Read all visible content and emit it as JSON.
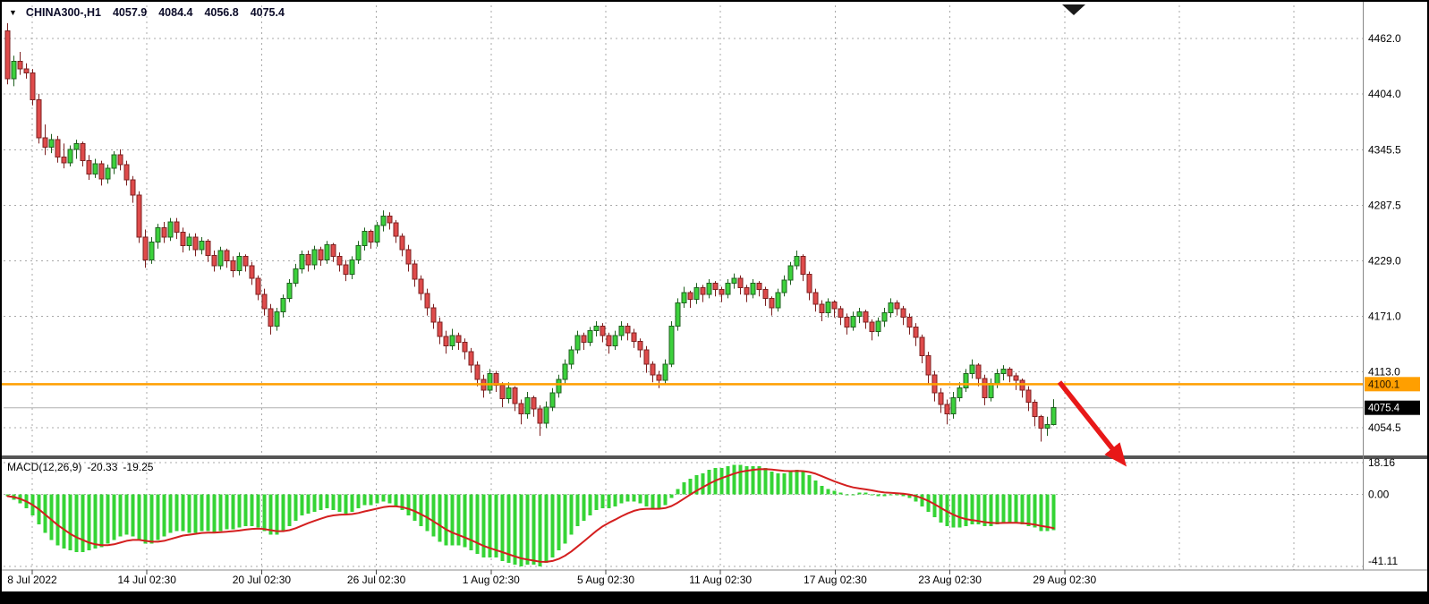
{
  "header": {
    "symbol": "CHINA300-,H1",
    "open": "4057.9",
    "high": "4084.4",
    "low": "4056.8",
    "close": "4075.4"
  },
  "icons": {
    "collapse_triangle": "▼"
  },
  "macd_header": {
    "label": "MACD(12,26,9)",
    "macd_value": "-20.33",
    "signal_value": "-19.25"
  },
  "chart_data": {
    "type": "candlestick",
    "title": "CHINA300-,H1",
    "symbol": "CHINA300-",
    "timeframe": "H1",
    "price_axis": {
      "ticks": [
        4462.0,
        4404.0,
        4345.5,
        4287.5,
        4229.0,
        4171.0,
        4113.0,
        4054.5
      ]
    },
    "time_axis": {
      "labels": [
        "8 Jul 2022",
        "14 Jul 02:30",
        "20 Jul 02:30",
        "26 Jul 02:30",
        "1 Aug 02:30",
        "5 Aug 02:30",
        "11 Aug 02:30",
        "17 Aug 02:30",
        "23 Aug 02:30",
        "29 Aug 02:30"
      ]
    },
    "level_line": {
      "value": 4100.1,
      "label": "4100.1"
    },
    "last_price": {
      "value": 4075.4,
      "label": "4075.4"
    },
    "annotation_arrow": {
      "description": "thick red arrow pointing down-right below the 4100.1 level after the last candles"
    },
    "candles": [
      [
        4470,
        4478,
        4414,
        4420
      ],
      [
        4420,
        4444,
        4412,
        4438
      ],
      [
        4438,
        4448,
        4424,
        4430
      ],
      [
        4430,
        4436,
        4420,
        4426
      ],
      [
        4426,
        4430,
        4392,
        4398
      ],
      [
        4398,
        4404,
        4352,
        4358
      ],
      [
        4358,
        4372,
        4340,
        4348
      ],
      [
        4348,
        4362,
        4342,
        4356
      ],
      [
        4356,
        4360,
        4332,
        4338
      ],
      [
        4338,
        4352,
        4326,
        4332
      ],
      [
        4332,
        4350,
        4328,
        4346
      ],
      [
        4346,
        4356,
        4336,
        4352
      ],
      [
        4352,
        4354,
        4328,
        4334
      ],
      [
        4334,
        4340,
        4314,
        4320
      ],
      [
        4320,
        4336,
        4316,
        4331
      ],
      [
        4331,
        4334,
        4308,
        4315
      ],
      [
        4315,
        4330,
        4310,
        4326
      ],
      [
        4326,
        4344,
        4320,
        4340
      ],
      [
        4340,
        4346,
        4324,
        4330
      ],
      [
        4330,
        4334,
        4308,
        4314
      ],
      [
        4314,
        4318,
        4290,
        4298
      ],
      [
        4298,
        4302,
        4248,
        4254
      ],
      [
        4254,
        4262,
        4222,
        4230
      ],
      [
        4230,
        4254,
        4226,
        4249
      ],
      [
        4249,
        4268,
        4242,
        4264
      ],
      [
        4264,
        4270,
        4248,
        4254
      ],
      [
        4254,
        4274,
        4250,
        4270
      ],
      [
        4270,
        4274,
        4252,
        4259
      ],
      [
        4259,
        4264,
        4238,
        4245
      ],
      [
        4245,
        4258,
        4240,
        4254
      ],
      [
        4254,
        4258,
        4234,
        4241
      ],
      [
        4241,
        4254,
        4236,
        4250
      ],
      [
        4250,
        4252,
        4228,
        4235
      ],
      [
        4235,
        4240,
        4218,
        4224
      ],
      [
        4224,
        4244,
        4220,
        4240
      ],
      [
        4240,
        4242,
        4222,
        4229
      ],
      [
        4229,
        4234,
        4212,
        4219
      ],
      [
        4219,
        4238,
        4214,
        4234
      ],
      [
        4234,
        4236,
        4218,
        4224
      ],
      [
        4224,
        4228,
        4204,
        4211
      ],
      [
        4211,
        4214,
        4188,
        4194
      ],
      [
        4194,
        4200,
        4172,
        4179
      ],
      [
        4179,
        4184,
        4152,
        4161
      ],
      [
        4161,
        4180,
        4156,
        4176
      ],
      [
        4176,
        4194,
        4170,
        4190
      ],
      [
        4190,
        4210,
        4186,
        4206
      ],
      [
        4206,
        4226,
        4202,
        4221
      ],
      [
        4221,
        4240,
        4216,
        4236
      ],
      [
        4236,
        4240,
        4218,
        4225
      ],
      [
        4225,
        4245,
        4220,
        4241
      ],
      [
        4241,
        4244,
        4224,
        4230
      ],
      [
        4230,
        4250,
        4226,
        4246
      ],
      [
        4246,
        4248,
        4228,
        4234
      ],
      [
        4234,
        4238,
        4218,
        4225
      ],
      [
        4225,
        4230,
        4208,
        4215
      ],
      [
        4215,
        4234,
        4210,
        4230
      ],
      [
        4230,
        4250,
        4226,
        4245
      ],
      [
        4245,
        4264,
        4240,
        4260
      ],
      [
        4260,
        4262,
        4242,
        4249
      ],
      [
        4249,
        4270,
        4244,
        4266
      ],
      [
        4266,
        4282,
        4260,
        4276
      ],
      [
        4276,
        4280,
        4262,
        4269
      ],
      [
        4269,
        4272,
        4248,
        4255
      ],
      [
        4255,
        4258,
        4234,
        4241
      ],
      [
        4241,
        4246,
        4218,
        4226
      ],
      [
        4226,
        4230,
        4202,
        4210
      ],
      [
        4210,
        4214,
        4188,
        4195
      ],
      [
        4195,
        4200,
        4172,
        4180
      ],
      [
        4180,
        4184,
        4158,
        4165
      ],
      [
        4165,
        4170,
        4142,
        4150
      ],
      [
        4150,
        4156,
        4132,
        4140
      ],
      [
        4140,
        4158,
        4136,
        4151
      ],
      [
        4151,
        4154,
        4136,
        4144
      ],
      [
        4144,
        4148,
        4126,
        4134
      ],
      [
        4134,
        4138,
        4112,
        4120
      ],
      [
        4120,
        4124,
        4098,
        4105
      ],
      [
        4105,
        4110,
        4086,
        4094
      ],
      [
        4094,
        4116,
        4090,
        4111
      ],
      [
        4111,
        4114,
        4092,
        4099
      ],
      [
        4099,
        4102,
        4076,
        4085
      ],
      [
        4085,
        4102,
        4080,
        4096
      ],
      [
        4096,
        4098,
        4072,
        4080
      ],
      [
        4080,
        4084,
        4058,
        4069
      ],
      [
        4069,
        4092,
        4064,
        4086
      ],
      [
        4086,
        4088,
        4066,
        4074
      ],
      [
        4074,
        4078,
        4046,
        4059
      ],
      [
        4059,
        4082,
        4054,
        4076
      ],
      [
        4076,
        4096,
        4072,
        4091
      ],
      [
        4091,
        4110,
        4086,
        4105
      ],
      [
        4105,
        4126,
        4100,
        4121
      ],
      [
        4121,
        4140,
        4116,
        4136
      ],
      [
        4136,
        4156,
        4132,
        4151
      ],
      [
        4151,
        4154,
        4136,
        4144
      ],
      [
        4144,
        4160,
        4140,
        4156
      ],
      [
        4156,
        4166,
        4150,
        4161
      ],
      [
        4161,
        4164,
        4144,
        4151
      ],
      [
        4151,
        4154,
        4132,
        4140
      ],
      [
        4140,
        4156,
        4136,
        4151
      ],
      [
        4151,
        4166,
        4146,
        4161
      ],
      [
        4161,
        4164,
        4146,
        4154
      ],
      [
        4154,
        4158,
        4138,
        4145
      ],
      [
        4145,
        4148,
        4128,
        4136
      ],
      [
        4136,
        4140,
        4112,
        4121
      ],
      [
        4121,
        4124,
        4102,
        4110
      ],
      [
        4110,
        4114,
        4096,
        4104
      ],
      [
        4104,
        4126,
        4100,
        4121
      ],
      [
        4121,
        4166,
        4118,
        4161
      ],
      [
        4161,
        4190,
        4156,
        4185
      ],
      [
        4185,
        4202,
        4180,
        4196
      ],
      [
        4196,
        4198,
        4180,
        4189
      ],
      [
        4189,
        4206,
        4184,
        4201
      ],
      [
        4201,
        4204,
        4186,
        4194
      ],
      [
        4194,
        4210,
        4190,
        4206
      ],
      [
        4206,
        4208,
        4192,
        4199
      ],
      [
        4199,
        4202,
        4186,
        4194
      ],
      [
        4194,
        4210,
        4190,
        4206
      ],
      [
        4206,
        4216,
        4200,
        4211
      ],
      [
        4211,
        4214,
        4194,
        4201
      ],
      [
        4201,
        4204,
        4186,
        4194
      ],
      [
        4194,
        4210,
        4190,
        4206
      ],
      [
        4206,
        4208,
        4192,
        4199
      ],
      [
        4199,
        4202,
        4182,
        4190
      ],
      [
        4190,
        4192,
        4172,
        4180
      ],
      [
        4180,
        4200,
        4176,
        4196
      ],
      [
        4196,
        4214,
        4192,
        4209
      ],
      [
        4209,
        4228,
        4204,
        4224
      ],
      [
        4224,
        4240,
        4220,
        4234
      ],
      [
        4234,
        4236,
        4208,
        4215
      ],
      [
        4215,
        4218,
        4188,
        4196
      ],
      [
        4196,
        4200,
        4176,
        4184
      ],
      [
        4184,
        4188,
        4166,
        4175
      ],
      [
        4175,
        4190,
        4170,
        4186
      ],
      [
        4186,
        4188,
        4170,
        4179
      ],
      [
        4179,
        4182,
        4162,
        4170
      ],
      [
        4170,
        4174,
        4152,
        4160
      ],
      [
        4160,
        4176,
        4156,
        4171
      ],
      [
        4171,
        4180,
        4164,
        4176
      ],
      [
        4176,
        4178,
        4158,
        4165
      ],
      [
        4165,
        4168,
        4146,
        4155
      ],
      [
        4155,
        4170,
        4150,
        4166
      ],
      [
        4166,
        4180,
        4160,
        4175
      ],
      [
        4175,
        4190,
        4170,
        4185
      ],
      [
        4185,
        4188,
        4172,
        4179
      ],
      [
        4179,
        4182,
        4162,
        4170
      ],
      [
        4170,
        4174,
        4152,
        4160
      ],
      [
        4160,
        4164,
        4140,
        4149
      ],
      [
        4149,
        4152,
        4122,
        4130
      ],
      [
        4130,
        4134,
        4100,
        4110
      ],
      [
        4110,
        4114,
        4082,
        4091
      ],
      [
        4091,
        4096,
        4070,
        4079
      ],
      [
        4079,
        4084,
        4058,
        4069
      ],
      [
        4069,
        4092,
        4064,
        4086
      ],
      [
        4086,
        4102,
        4082,
        4096
      ],
      [
        4096,
        4116,
        4092,
        4111
      ],
      [
        4111,
        4126,
        4106,
        4120
      ],
      [
        4120,
        4122,
        4098,
        4106
      ],
      [
        4106,
        4110,
        4078,
        4086
      ],
      [
        4086,
        4106,
        4082,
        4101
      ],
      [
        4101,
        4116,
        4096,
        4111
      ],
      [
        4111,
        4120,
        4104,
        4116
      ],
      [
        4116,
        4118,
        4102,
        4109
      ],
      [
        4109,
        4112,
        4094,
        4104
      ],
      [
        4104,
        4106,
        4086,
        4094
      ],
      [
        4094,
        4098,
        4072,
        4081
      ],
      [
        4081,
        4084,
        4056,
        4066
      ],
      [
        4066,
        4068,
        4040,
        4054
      ],
      [
        4054,
        4066,
        4046,
        4058
      ],
      [
        4057.9,
        4084.4,
        4056.8,
        4075.4
      ]
    ],
    "macd": {
      "label": "MACD(12,26,9)",
      "macd_value": -20.33,
      "signal_value": -19.25,
      "ticks": [
        18.16,
        0.0,
        -41.11
      ],
      "histogram": [
        -1,
        -3,
        -5,
        -8,
        -12,
        -17,
        -22,
        -26,
        -29,
        -31,
        -32,
        -33,
        -33,
        -32,
        -31,
        -30,
        -28,
        -26,
        -24,
        -23,
        -24,
        -26,
        -28,
        -28,
        -26,
        -24,
        -22,
        -21,
        -21,
        -22,
        -22,
        -21,
        -21,
        -22,
        -21,
        -20,
        -20,
        -19,
        -18,
        -18,
        -19,
        -21,
        -23,
        -23,
        -21,
        -18,
        -15,
        -12,
        -11,
        -10,
        -9,
        -8,
        -9,
        -10,
        -11,
        -10,
        -8,
        -6,
        -6,
        -5,
        -4,
        -5,
        -7,
        -9,
        -12,
        -15,
        -18,
        -21,
        -24,
        -27,
        -29,
        -29,
        -29,
        -30,
        -32,
        -34,
        -36,
        -36,
        -36,
        -38,
        -39,
        -40,
        -41,
        -40,
        -40,
        -41,
        -39,
        -36,
        -32,
        -28,
        -23,
        -18,
        -15,
        -12,
        -9,
        -8,
        -8,
        -7,
        -5,
        -4,
        -4,
        -5,
        -7,
        -8,
        -8,
        -6,
        -2,
        3,
        7,
        9,
        11,
        12,
        14,
        15,
        15,
        16,
        17,
        17,
        16,
        16,
        16,
        15,
        13,
        12,
        12,
        13,
        14,
        13,
        11,
        8,
        5,
        3,
        2,
        1,
        0,
        0,
        1,
        1,
        0,
        -1,
        -1,
        0,
        0,
        -1,
        -2,
        -4,
        -7,
        -10,
        -13,
        -16,
        -18,
        -19,
        -19,
        -18,
        -17,
        -17,
        -18,
        -18,
        -17,
        -16,
        -16,
        -16,
        -17,
        -18,
        -19,
        -21,
        -21,
        -20.33
      ],
      "signal": [
        -1,
        -1.5,
        -2.5,
        -4,
        -6,
        -8.5,
        -11.5,
        -14.5,
        -17.5,
        -20,
        -22.5,
        -24.5,
        -26,
        -27.5,
        -28.5,
        -29,
        -29,
        -28.5,
        -27.5,
        -26.5,
        -26,
        -26,
        -26.5,
        -27,
        -27,
        -26.5,
        -25.5,
        -24.5,
        -23.5,
        -23,
        -22.5,
        -22,
        -21.8,
        -21.8,
        -21.6,
        -21.3,
        -21,
        -20.6,
        -20.1,
        -19.7,
        -19.5,
        -19.8,
        -20.4,
        -21,
        -21,
        -20.4,
        -19.3,
        -17.8,
        -16.4,
        -15.1,
        -13.9,
        -12.7,
        -12,
        -11.6,
        -11.5,
        -11.2,
        -10.6,
        -9.7,
        -8.9,
        -8.1,
        -7.3,
        -6.8,
        -6.8,
        -7.3,
        -8.2,
        -9.6,
        -11.3,
        -13.2,
        -15.4,
        -17.7,
        -20,
        -21.8,
        -23.2,
        -24.6,
        -26.1,
        -27.7,
        -29.4,
        -30.7,
        -31.8,
        -33,
        -34.2,
        -35.4,
        -36.5,
        -37.2,
        -37.8,
        -38.4,
        -38.5,
        -38,
        -36.8,
        -35,
        -32.6,
        -29.7,
        -26.8,
        -23.8,
        -20.8,
        -18.2,
        -16.2,
        -14.4,
        -12.5,
        -10.8,
        -9.4,
        -8.5,
        -8.2,
        -8.2,
        -8.2,
        -7.8,
        -6.6,
        -4.7,
        -2.4,
        -0.1,
        2.1,
        4.1,
        6.1,
        7.9,
        9.3,
        10.6,
        11.9,
        12.9,
        13.5,
        14,
        14.4,
        14.5,
        14.2,
        13.8,
        13.4,
        13.3,
        13.4,
        13.3,
        12.8,
        11.8,
        10.4,
        8.9,
        7.5,
        6.2,
        5,
        4,
        3.4,
        2.9,
        2.3,
        1.6,
        1.1,
        0.9,
        0.7,
        0.4,
        -0.1,
        -0.9,
        -2.1,
        -3.7,
        -5.6,
        -7.7,
        -9.8,
        -11.6,
        -13.1,
        -14.1,
        -14.7,
        -15.2,
        -15.8,
        -16.2,
        -16.4,
        -16.3,
        -16.2,
        -16.2,
        -16.4,
        -16.7,
        -17.2,
        -18,
        -18.6,
        -19.25
      ]
    },
    "colors": {
      "background": "#ffffff",
      "grid": "#a8a8a8",
      "bull": "#3cd13c",
      "bull_border": "#206020",
      "bear": "#df4b4b",
      "bear_border": "#7c2020",
      "macd_hist": "#35d435",
      "macd_signal": "#d41f1f",
      "level": "#ff9f00",
      "arrow": "#e81818",
      "last_price_line": "#b0b0b0",
      "axis_text": "#000000",
      "badge_black_bg": "#000000",
      "badge_black_text": "#ffffff",
      "badge_level_text": "#221500",
      "separator": "#555555",
      "window_border": "#000000"
    }
  }
}
